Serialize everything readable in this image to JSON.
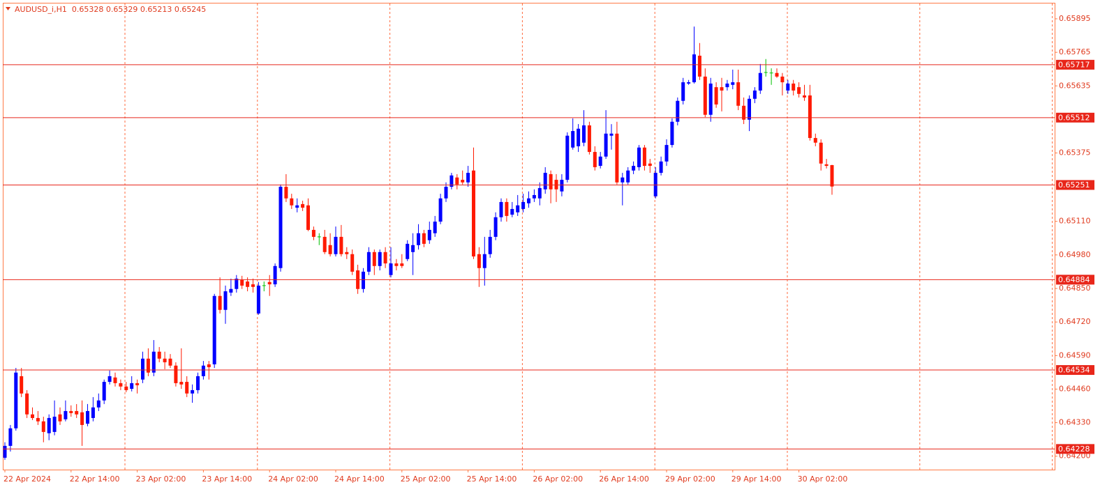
{
  "chart_data": {
    "type": "candlestick",
    "title": "AUDUSD_i,H1  0.65328 0.65329 0.65213 0.65245",
    "categories": [
      "22 Apr 2024",
      null,
      null,
      null,
      null,
      null,
      null,
      null,
      null,
      null,
      null,
      null,
      "22 Apr 14:00",
      null,
      null,
      null,
      null,
      null,
      null,
      null,
      null,
      null,
      null,
      null,
      "23 Apr 02:00",
      null,
      null,
      null,
      null,
      null,
      null,
      null,
      null,
      null,
      null,
      null,
      "23 Apr 14:00",
      null,
      null,
      null,
      null,
      null,
      null,
      null,
      null,
      null,
      null,
      null,
      "24 Apr 02:00",
      null,
      null,
      null,
      null,
      null,
      null,
      null,
      null,
      null,
      null,
      null,
      "24 Apr 14:00",
      null,
      null,
      null,
      null,
      null,
      null,
      null,
      null,
      null,
      null,
      null,
      "25 Apr 02:00",
      null,
      null,
      null,
      null,
      null,
      null,
      null,
      null,
      null,
      null,
      null,
      "25 Apr 14:00",
      null,
      null,
      null,
      null,
      null,
      null,
      null,
      null,
      null,
      null,
      null,
      "26 Apr 02:00",
      null,
      null,
      null,
      null,
      null,
      null,
      null,
      null,
      null,
      null,
      null,
      "26 Apr 14:00",
      null,
      null,
      null,
      null,
      null,
      null,
      null,
      null,
      null,
      null,
      null,
      "29 Apr 02:00",
      null,
      null,
      null,
      null,
      null,
      null,
      null,
      null,
      null,
      null,
      null,
      "29 Apr 14:00",
      null,
      null,
      null,
      null,
      null,
      null,
      null,
      null,
      null,
      null,
      null,
      "30 Apr 02:00",
      null,
      null,
      null,
      null,
      null,
      null
    ],
    "open": [
      0.64194,
      0.6424,
      0.64308,
      0.6451,
      0.64443,
      0.64362,
      0.64348,
      0.64335,
      0.64289,
      0.64294,
      0.64362,
      0.64343,
      0.64375,
      0.64375,
      0.6437,
      0.64326,
      0.64348,
      0.64389,
      0.64416,
      0.64488,
      0.64505,
      0.64483,
      0.6447,
      0.64461,
      0.64483,
      0.64497,
      0.64578,
      0.64524,
      0.64605,
      0.64578,
      0.64578,
      0.64551,
      0.64488,
      0.64488,
      0.64443,
      0.64456,
      0.6451,
      0.64556,
      0.64556,
      0.64821,
      0.64767,
      0.64834,
      0.64848,
      0.64883,
      0.64877,
      0.64866,
      0.64753,
      0.64861,
      0.64875,
      0.64866,
      0.64929,
      0.65244,
      0.65199,
      0.65163,
      0.65177,
      0.65172,
      0.65077,
      0.6505,
      0.6505,
      0.65018,
      0.64983,
      0.6505,
      0.64991,
      0.64983,
      0.6492,
      0.64848,
      0.64915,
      0.64991,
      0.64937,
      0.64991,
      0.64902,
      0.64947,
      0.64947,
      0.64964,
      0.64991,
      0.65018,
      0.65064,
      0.65037,
      0.65064,
      0.65109,
      0.65199,
      0.65244,
      0.6528,
      0.65271,
      0.65261,
      0.65307,
      0.64983,
      0.64929,
      0.64983,
      0.6505,
      0.65126,
      0.65185,
      0.65136,
      0.65145,
      0.65158,
      0.6518,
      0.65199,
      0.65199,
      0.65234,
      0.65293,
      0.65271,
      0.65226,
      0.65271,
      0.65396,
      0.65401,
      0.65415,
      0.65482,
      0.65379,
      0.65325,
      0.65361,
      0.65442,
      0.6545,
      0.65261,
      0.65261,
      0.65307,
      0.6532,
      0.65396,
      0.65334,
      0.65207,
      0.65298,
      0.65342,
      0.65406,
      0.65496,
      0.65577,
      0.65644,
      0.65649,
      0.65752,
      0.65671,
      0.65523,
      0.6563,
      0.6563,
      0.6563,
      0.65639,
      0.65649,
      0.65558,
      0.65504,
      0.65585,
      0.65617,
      0.65687,
      0.65685,
      0.65685,
      0.65671,
      0.65617,
      0.65644,
      0.6563,
      0.65598,
      0.65598,
      0.65433,
      0.65415,
      0.65331,
      0.65328
    ],
    "high": [
      0.64254,
      0.64321,
      0.64542,
      0.64542,
      0.64456,
      0.64389,
      0.64375,
      0.64353,
      0.64362,
      0.64416,
      0.64389,
      0.64416,
      0.64397,
      0.64402,
      0.64416,
      0.64402,
      0.64429,
      0.64443,
      0.64497,
      0.64532,
      0.64524,
      0.64497,
      0.64488,
      0.6451,
      0.64497,
      0.64605,
      0.64618,
      0.6465,
      0.64623,
      0.64605,
      0.64596,
      0.64564,
      0.64618,
      0.6451,
      0.64478,
      0.64524,
      0.64569,
      0.64569,
      0.64829,
      0.64893,
      0.64861,
      0.64888,
      0.64902,
      0.64899,
      0.64893,
      0.64888,
      0.64875,
      0.64877,
      0.64902,
      0.64947,
      0.65253,
      0.65293,
      0.65217,
      0.65199,
      0.6519,
      0.65199,
      0.6509,
      0.65064,
      0.65077,
      0.65064,
      0.6509,
      0.65096,
      0.6501,
      0.65001,
      0.64942,
      0.64929,
      0.6501,
      0.65001,
      0.65001,
      0.6501,
      0.6501,
      0.64964,
      0.64983,
      0.65037,
      0.65064,
      0.65099,
      0.65077,
      0.65109,
      0.65131,
      0.65217,
      0.65261,
      0.65298,
      0.65293,
      0.65307,
      0.65325,
      0.65396,
      0.6501,
      0.6505,
      0.65077,
      0.65145,
      0.65199,
      0.65199,
      0.65185,
      0.65212,
      0.65217,
      0.65226,
      0.65234,
      0.65261,
      0.6532,
      0.65307,
      0.65293,
      0.65293,
      0.65455,
      0.65509,
      0.65487,
      0.65541,
      0.65496,
      0.65401,
      0.65379,
      0.65541,
      0.65487,
      0.65496,
      0.65298,
      0.6532,
      0.65342,
      0.65406,
      0.65406,
      0.65352,
      0.6532,
      0.65361,
      0.65428,
      0.65509,
      0.6559,
      0.65666,
      0.65658,
      0.65865,
      0.65801,
      0.65703,
      0.65666,
      0.65649,
      0.65666,
      0.65658,
      0.65698,
      0.65698,
      0.6559,
      0.65598,
      0.6563,
      0.6572,
      0.65739,
      0.65703,
      0.65703,
      0.65685,
      0.65658,
      0.65658,
      0.65649,
      0.65639,
      0.65639,
      0.6545,
      0.65428,
      0.65352,
      0.65329
    ],
    "low": [
      0.64186,
      0.64218,
      0.64299,
      0.64429,
      0.64348,
      0.6434,
      0.64321,
      0.64254,
      0.64262,
      0.64281,
      0.64321,
      0.64335,
      0.64353,
      0.64348,
      0.6424,
      0.64316,
      0.64335,
      0.64375,
      0.64402,
      0.64478,
      0.6447,
      0.64456,
      0.64448,
      0.64451,
      0.64443,
      0.64483,
      0.6451,
      0.6451,
      0.64564,
      0.64537,
      0.64542,
      0.6447,
      0.64461,
      0.64429,
      0.64407,
      0.64443,
      0.64497,
      0.64497,
      0.64542,
      0.64753,
      0.64713,
      0.64821,
      0.64834,
      0.64848,
      0.64839,
      0.64834,
      0.64748,
      0.64839,
      0.64821,
      0.64856,
      0.64915,
      0.65185,
      0.65158,
      0.65145,
      0.6515,
      0.65072,
      0.65037,
      0.65018,
      0.64983,
      0.64974,
      0.64974,
      0.64974,
      0.64964,
      0.64902,
      0.64829,
      0.64834,
      0.64902,
      0.64902,
      0.6492,
      0.64929,
      0.64893,
      0.6492,
      0.64929,
      0.64956,
      0.64902,
      0.65001,
      0.6501,
      0.65023,
      0.6505,
      0.65099,
      0.65185,
      0.65234,
      0.65234,
      0.65253,
      0.65244,
      0.64964,
      0.64856,
      0.64861,
      0.64969,
      0.65037,
      0.65109,
      0.65109,
      0.65126,
      0.65131,
      0.65145,
      0.65163,
      0.65185,
      0.65172,
      0.65217,
      0.6518,
      0.65185,
      0.65207,
      0.65261,
      0.65388,
      0.65379,
      0.65401,
      0.65369,
      0.65307,
      0.65315,
      0.65352,
      0.65388,
      0.65253,
      0.65172,
      0.65253,
      0.65293,
      0.65307,
      0.65307,
      0.65298,
      0.65199,
      0.65288,
      0.65325,
      0.65396,
      0.65482,
      0.65563,
      0.65639,
      0.65644,
      0.65658,
      0.65514,
      0.65496,
      0.6555,
      0.65536,
      0.65617,
      0.65622,
      0.65541,
      0.65487,
      0.6546,
      0.65568,
      0.65604,
      0.65671,
      0.65639,
      0.65666,
      0.65598,
      0.65604,
      0.65598,
      0.6559,
      0.65577,
      0.65423,
      0.65401,
      0.65307,
      0.65315,
      0.65213
    ],
    "close": [
      0.6424,
      0.64308,
      0.64524,
      0.64443,
      0.64362,
      0.64348,
      0.64335,
      0.64294,
      0.64348,
      0.64353,
      0.64335,
      0.64375,
      0.64367,
      0.64362,
      0.64321,
      0.64375,
      0.64389,
      0.64416,
      0.64488,
      0.6451,
      0.64483,
      0.6447,
      0.64456,
      0.64483,
      0.64475,
      0.64578,
      0.64524,
      0.64605,
      0.64578,
      0.64564,
      0.64551,
      0.64483,
      0.64478,
      0.64443,
      0.64456,
      0.6451,
      0.64551,
      0.64545,
      0.64821,
      0.64767,
      0.64839,
      0.64848,
      0.64888,
      0.64861,
      0.64856,
      0.64856,
      0.64861,
      0.64861,
      0.64866,
      0.64937,
      0.65244,
      0.65199,
      0.65172,
      0.65172,
      0.65163,
      0.65077,
      0.6505,
      0.6505,
      0.64991,
      0.64983,
      0.6505,
      0.64983,
      0.64983,
      0.64915,
      0.64848,
      0.64915,
      0.64991,
      0.64937,
      0.64991,
      0.64947,
      0.64947,
      0.64937,
      0.64937,
      0.65023,
      0.65018,
      0.65064,
      0.65023,
      0.65077,
      0.65109,
      0.65199,
      0.65244,
      0.65288,
      0.65253,
      0.65261,
      0.65298,
      0.64974,
      0.64929,
      0.64983,
      0.6505,
      0.65126,
      0.65185,
      0.65131,
      0.65158,
      0.65172,
      0.65185,
      0.65199,
      0.65212,
      0.65239,
      0.65298,
      0.65234,
      0.65234,
      0.65271,
      0.65442,
      0.6546,
      0.65469,
      0.65482,
      0.65379,
      0.6532,
      0.65361,
      0.6545,
      0.6545,
      0.65261,
      0.6528,
      0.65307,
      0.65325,
      0.65396,
      0.65325,
      0.65325,
      0.65298,
      0.65342,
      0.65406,
      0.65496,
      0.65577,
      0.65649,
      0.65649,
      0.65757,
      0.65671,
      0.65523,
      0.65644,
      0.65563,
      0.65617,
      0.65644,
      0.65649,
      0.65558,
      0.65504,
      0.65585,
      0.65617,
      0.65685,
      0.65687,
      0.65685,
      0.65671,
      0.65649,
      0.65644,
      0.65617,
      0.65604,
      0.6559,
      0.65433,
      0.65415,
      0.65334,
      0.65325,
      0.65245
    ],
    "up_color": "#0000ff",
    "down_color": "#ff1a00",
    "doji_color": "#00c000",
    "ylim": [
      0.64148,
      0.65957
    ],
    "yticks": [
      0.65895,
      0.65765,
      0.65635,
      0.65375,
      {
        "value": 0.6511,
        "label": "0.65110"
      },
      {
        "value": 0.6498,
        "label": "0.64980"
      },
      {
        "value": 0.6485,
        "label": "0.64850"
      },
      {
        "value": 0.6472,
        "label": "0.64720"
      },
      {
        "value": 0.6459,
        "label": "0.64590"
      },
      {
        "value": 0.6446,
        "label": "0.64460"
      },
      {
        "value": 0.6433,
        "label": "0.64330"
      },
      {
        "value": 0.642,
        "label": "0.64200"
      }
    ],
    "levels": [
      0.65717,
      0.65512,
      0.65251,
      0.64884,
      0.64534,
      0.64228
    ],
    "level_color": "#e8261a"
  }
}
